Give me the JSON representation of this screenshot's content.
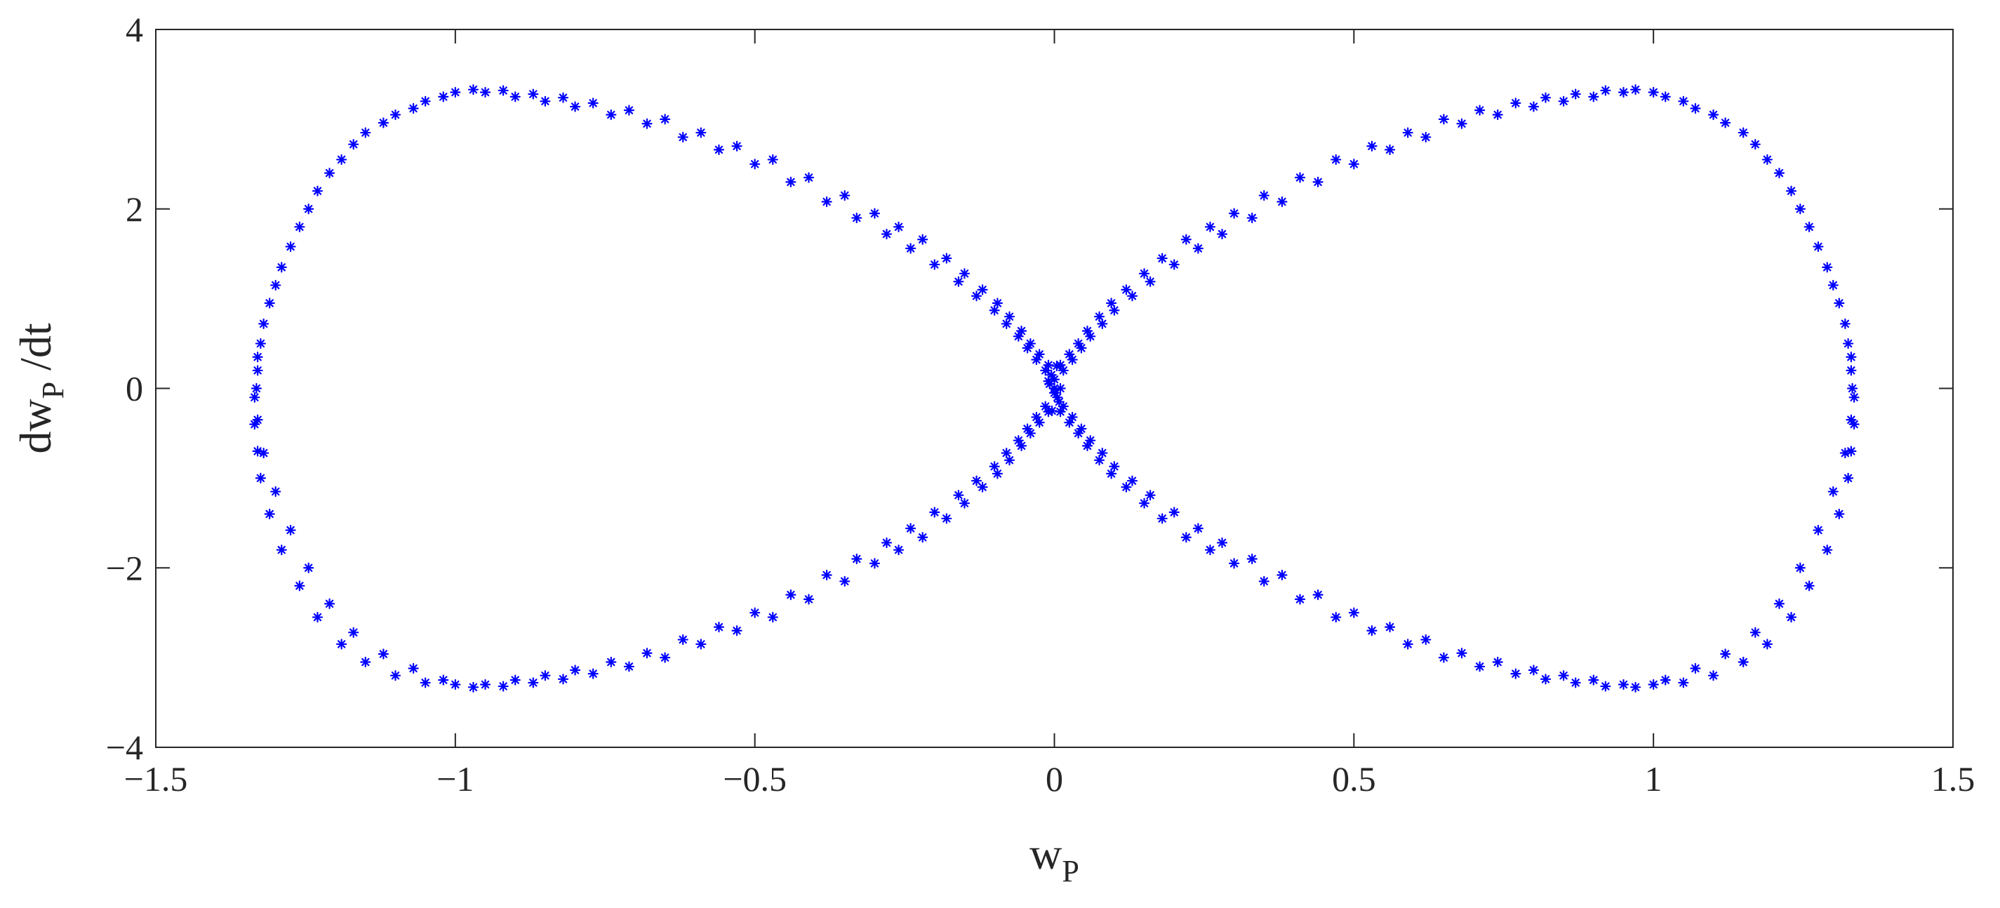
{
  "chart_data": {
    "type": "scatter",
    "title": "",
    "xlabel": {
      "base": "w",
      "sub": "P",
      "suffix": ""
    },
    "ylabel": {
      "base": "dw",
      "sub": "P",
      "suffix": " /dt"
    },
    "xlim": [
      -1.5,
      1.5
    ],
    "ylim": [
      -4,
      4
    ],
    "xticks": [
      {
        "value": -1.5,
        "label": "−1.5"
      },
      {
        "value": -1,
        "label": "−1"
      },
      {
        "value": -0.5,
        "label": "−0.5"
      },
      {
        "value": 0,
        "label": "0"
      },
      {
        "value": 0.5,
        "label": "0.5"
      },
      {
        "value": 1,
        "label": "1"
      },
      {
        "value": 1.5,
        "label": "1.5"
      }
    ],
    "yticks": [
      {
        "value": -4,
        "label": "−4"
      },
      {
        "value": -2,
        "label": "−2"
      },
      {
        "value": 0,
        "label": "0"
      },
      {
        "value": 2,
        "label": "2"
      },
      {
        "value": 4,
        "label": "4"
      }
    ],
    "grid": false,
    "legend": "none",
    "marker": "asterisk",
    "color": "#0000FF",
    "series": [
      {
        "x": [
          0.0,
          0.015,
          0.03,
          0.045,
          0.06,
          0.08,
          0.1,
          0.13,
          0.16,
          0.2,
          0.24,
          0.28,
          0.33,
          0.38,
          0.44,
          0.5,
          0.56,
          0.62,
          0.68,
          0.74,
          0.8,
          0.85,
          0.9,
          0.95,
          1.0,
          1.05,
          1.1,
          1.15,
          1.19,
          1.23,
          1.26,
          1.29,
          1.31,
          1.325,
          1.33,
          1.335,
          1.335,
          1.33,
          1.325,
          1.31,
          1.29,
          1.26,
          1.23,
          1.19,
          1.15,
          1.1,
          1.05,
          1.0,
          0.95,
          0.9,
          0.85,
          0.8,
          0.74,
          0.68,
          0.62,
          0.56,
          0.5,
          0.44,
          0.38,
          0.33,
          0.28,
          0.24,
          0.2,
          0.16,
          0.13,
          0.1,
          0.08,
          0.06,
          0.045,
          0.03,
          0.015,
          0.0,
          -0.015,
          -0.03,
          -0.045,
          -0.06,
          -0.08,
          -0.1,
          -0.13,
          -0.16,
          -0.2,
          -0.24,
          -0.28,
          -0.33,
          -0.38,
          -0.44,
          -0.5,
          -0.56,
          -0.62,
          -0.68,
          -0.74,
          -0.8,
          -0.85,
          -0.9,
          -0.95,
          -1.0,
          -1.05,
          -1.1,
          -1.15,
          -1.19,
          -1.23,
          -1.26,
          -1.29,
          -1.31,
          -1.325,
          -1.33,
          -1.335,
          -1.335,
          -1.33,
          -1.325,
          -1.31,
          -1.29,
          -1.26,
          -1.23,
          -1.19,
          -1.15,
          -1.1,
          -1.05,
          -1.0,
          -0.95,
          -0.9,
          -0.85,
          -0.8,
          -0.74,
          -0.68,
          -0.62,
          -0.56,
          -0.5,
          -0.44,
          -0.38,
          -0.33,
          -0.28,
          -0.24,
          -0.2,
          -0.16,
          -0.13,
          -0.1,
          -0.08,
          -0.06,
          -0.045,
          -0.03,
          -0.015,
          0.01,
          0.025,
          0.04,
          0.055,
          0.075,
          0.095,
          0.12,
          0.15,
          0.18,
          0.22,
          0.26,
          0.3,
          0.35,
          0.41,
          0.47,
          0.53,
          0.59,
          0.65,
          0.71,
          0.77,
          0.82,
          0.87,
          0.92,
          0.97,
          1.02,
          1.07,
          1.12,
          1.17,
          1.21,
          1.245,
          1.275,
          1.3,
          1.32,
          1.33,
          1.332,
          1.33,
          1.32,
          1.3,
          1.275,
          1.245,
          1.21,
          1.17,
          1.12,
          1.07,
          1.02,
          0.97,
          0.92,
          0.87,
          0.82,
          0.77,
          0.71,
          0.65,
          0.59,
          0.53,
          0.47,
          0.41,
          0.35,
          0.3,
          0.26,
          0.22,
          0.18,
          0.15,
          0.12,
          0.095,
          0.075,
          0.055,
          0.04,
          0.025,
          0.01,
          -0.01,
          -0.025,
          -0.04,
          -0.055,
          -0.075,
          -0.095,
          -0.12,
          -0.15,
          -0.18,
          -0.22,
          -0.26,
          -0.3,
          -0.35,
          -0.41,
          -0.47,
          -0.53,
          -0.59,
          -0.65,
          -0.71,
          -0.77,
          -0.82,
          -0.87,
          -0.92,
          -0.97,
          -1.02,
          -1.07,
          -1.12,
          -1.17,
          -1.21,
          -1.245,
          -1.275,
          -1.3,
          -1.32,
          -1.33,
          -1.332,
          -1.33,
          -1.32,
          -1.3,
          -1.275,
          -1.245,
          -1.21,
          -1.17,
          -1.12,
          -1.07,
          -1.02,
          -0.97,
          -0.92,
          -0.87,
          -0.82,
          -0.77,
          -0.71,
          -0.65,
          -0.59,
          -0.53,
          -0.47,
          -0.41,
          -0.35,
          -0.3,
          -0.26,
          -0.22,
          -0.18,
          -0.15,
          -0.12,
          -0.095,
          -0.075,
          -0.055,
          -0.04,
          -0.025,
          -0.01,
          0.0,
          0.005,
          -0.005,
          0.008,
          -0.008,
          0.0,
          0.004,
          -0.004,
          0.01,
          -0.01
        ],
        "y": [
          0.0,
          0.2,
          0.32,
          0.45,
          0.58,
          0.72,
          0.87,
          1.03,
          1.19,
          1.38,
          1.56,
          1.72,
          1.9,
          2.08,
          2.3,
          2.5,
          2.66,
          2.8,
          2.95,
          3.05,
          3.14,
          3.2,
          3.25,
          3.3,
          3.3,
          3.2,
          3.05,
          2.85,
          2.55,
          2.2,
          1.8,
          1.35,
          0.95,
          0.5,
          0.2,
          -0.1,
          -0.4,
          -0.7,
          -1.0,
          -1.4,
          -1.8,
          -2.2,
          -2.55,
          -2.85,
          -3.05,
          -3.2,
          -3.28,
          -3.3,
          -3.3,
          -3.25,
          -3.2,
          -3.14,
          -3.05,
          -2.95,
          -2.8,
          -2.66,
          -2.5,
          -2.3,
          -2.08,
          -1.9,
          -1.72,
          -1.56,
          -1.38,
          -1.19,
          -1.03,
          -0.87,
          -0.72,
          -0.58,
          -0.45,
          -0.32,
          -0.2,
          0.0,
          0.2,
          0.32,
          0.45,
          0.58,
          0.72,
          0.87,
          1.03,
          1.19,
          1.38,
          1.56,
          1.72,
          1.9,
          2.08,
          2.3,
          2.5,
          2.66,
          2.8,
          2.95,
          3.05,
          3.14,
          3.2,
          3.25,
          3.3,
          3.3,
          3.2,
          3.05,
          2.85,
          2.55,
          2.2,
          1.8,
          1.35,
          0.95,
          0.5,
          0.2,
          -0.1,
          -0.4,
          -0.7,
          -1.0,
          -1.4,
          -1.8,
          -2.2,
          -2.55,
          -2.85,
          -3.05,
          -3.2,
          -3.28,
          -3.3,
          -3.3,
          -3.25,
          -3.2,
          -3.14,
          -3.05,
          -2.95,
          -2.8,
          -2.66,
          -2.5,
          -2.3,
          -2.08,
          -1.9,
          -1.72,
          -1.56,
          -1.38,
          -1.19,
          -1.03,
          -0.87,
          -0.72,
          -0.58,
          -0.45,
          -0.32,
          -0.2,
          0.26,
          0.38,
          0.5,
          0.64,
          0.8,
          0.95,
          1.1,
          1.28,
          1.45,
          1.66,
          1.8,
          1.95,
          2.15,
          2.35,
          2.55,
          2.7,
          2.85,
          3.0,
          3.1,
          3.18,
          3.24,
          3.28,
          3.32,
          3.33,
          3.25,
          3.12,
          2.96,
          2.72,
          2.4,
          2.0,
          1.58,
          1.15,
          0.72,
          0.35,
          0.0,
          -0.35,
          -0.72,
          -1.15,
          -1.58,
          -2.0,
          -2.4,
          -2.72,
          -2.96,
          -3.12,
          -3.25,
          -3.33,
          -3.32,
          -3.28,
          -3.24,
          -3.18,
          -3.1,
          -3.0,
          -2.85,
          -2.7,
          -2.55,
          -2.35,
          -2.15,
          -1.95,
          -1.8,
          -1.66,
          -1.45,
          -1.28,
          -1.1,
          -0.95,
          -0.8,
          -0.64,
          -0.5,
          -0.38,
          -0.26,
          0.26,
          0.38,
          0.5,
          0.64,
          0.8,
          0.95,
          1.1,
          1.28,
          1.45,
          1.66,
          1.8,
          1.95,
          2.15,
          2.35,
          2.55,
          2.7,
          2.85,
          3.0,
          3.1,
          3.18,
          3.24,
          3.28,
          3.32,
          3.33,
          3.25,
          3.12,
          2.96,
          2.72,
          2.4,
          2.0,
          1.58,
          1.15,
          0.72,
          0.35,
          0.0,
          -0.35,
          -0.72,
          -1.15,
          -1.58,
          -2.0,
          -2.4,
          -2.72,
          -2.96,
          -3.12,
          -3.25,
          -3.33,
          -3.32,
          -3.28,
          -3.24,
          -3.18,
          -3.1,
          -3.0,
          -2.85,
          -2.7,
          -2.55,
          -2.35,
          -2.15,
          -1.95,
          -1.8,
          -1.66,
          -1.45,
          -1.28,
          -1.1,
          -0.95,
          -0.8,
          -0.64,
          -0.5,
          -0.38,
          -0.26,
          0.1,
          -0.1,
          0.15,
          -0.15,
          0.05,
          -0.05,
          0.25,
          -0.25,
          0.0,
          0.08
        ]
      }
    ]
  }
}
